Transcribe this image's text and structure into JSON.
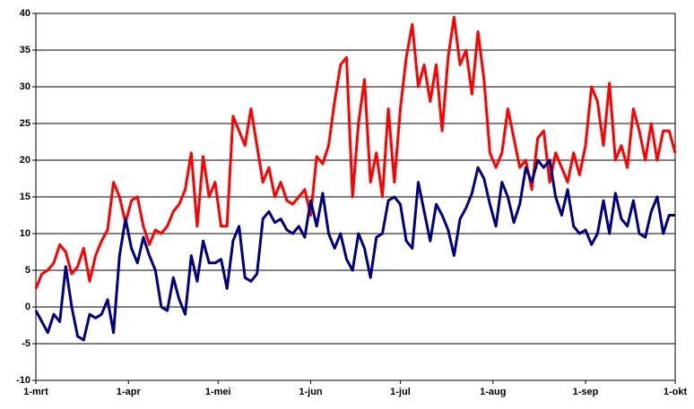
{
  "chart_data": {
    "type": "line",
    "x": [
      0,
      2,
      4,
      6,
      8,
      10,
      12,
      14,
      16,
      18,
      20,
      22,
      24,
      26,
      28,
      30,
      32,
      34,
      36,
      38,
      40,
      42,
      44,
      46,
      48,
      50,
      52,
      54,
      56,
      58,
      60,
      62,
      64,
      66,
      68,
      70,
      72,
      74,
      76,
      78,
      80,
      82,
      84,
      86,
      88,
      90,
      92,
      94,
      96,
      98,
      100,
      102,
      104,
      106,
      108,
      110,
      112,
      114,
      116,
      118,
      120,
      122,
      124,
      126,
      128,
      130,
      132,
      134,
      136,
      138,
      140,
      142,
      144,
      146,
      148,
      150,
      152,
      154,
      156,
      158,
      160,
      162,
      164,
      166,
      168,
      170,
      172,
      174,
      176,
      178,
      180,
      182,
      184,
      186,
      188,
      190,
      192,
      194,
      196,
      198,
      200,
      202,
      204,
      206,
      208,
      210,
      212,
      214
    ],
    "series": [
      {
        "color": "#ff0000",
        "values": [
          2.5,
          4.5,
          5,
          6,
          8.5,
          7.5,
          4.5,
          5.5,
          8,
          3.5,
          7,
          9,
          10.5,
          17,
          15,
          11.5,
          14.5,
          15,
          11,
          8.5,
          10.5,
          10,
          11,
          13,
          14,
          16,
          21,
          11,
          20.5,
          15,
          17,
          11,
          11,
          26,
          24,
          22,
          27,
          22,
          17,
          19,
          15,
          17,
          14.5,
          14,
          15,
          16,
          12.5,
          20.5,
          19.5,
          22,
          28,
          33,
          34,
          15,
          25,
          31,
          17,
          21,
          15,
          27,
          17,
          27,
          34,
          38.5,
          30,
          33,
          28,
          33,
          24,
          34,
          39.5,
          33,
          35,
          29,
          37.5,
          31,
          21,
          19,
          21,
          27,
          23,
          19,
          20,
          16,
          23,
          24,
          17,
          21,
          19,
          17,
          21,
          18,
          22,
          30,
          28,
          22,
          30.5,
          20,
          22,
          19,
          27,
          24,
          20,
          25,
          20,
          24,
          24,
          21
        ]
      },
      {
        "color": "#000080",
        "values": [
          -0.5,
          -2,
          -3.5,
          -1,
          -2,
          5.5,
          0,
          -4,
          -4.5,
          -1,
          -1.5,
          -1,
          1,
          -3.5,
          7,
          12,
          8,
          6,
          9.5,
          7,
          5,
          0,
          -0.5,
          4,
          1,
          -1,
          7,
          3.5,
          9,
          6,
          6,
          6.5,
          2.5,
          9,
          11,
          4,
          3.5,
          4.5,
          12,
          13,
          11.5,
          12,
          10.5,
          10,
          11,
          9.5,
          14.5,
          11,
          15.5,
          10,
          8,
          10,
          6.5,
          5,
          10,
          8,
          4,
          9.5,
          10,
          14.5,
          15,
          14,
          9,
          8,
          17,
          13,
          9,
          14,
          12.5,
          10.5,
          7,
          12,
          13.5,
          15.5,
          19,
          17.5,
          14,
          11,
          17,
          15,
          11.5,
          14,
          19,
          17,
          20,
          19,
          20,
          15,
          12.5,
          16,
          11,
          10,
          10.5,
          8.5,
          10,
          14.5,
          10,
          15.5,
          12,
          11,
          14.5,
          10,
          9.5,
          13,
          15,
          10,
          12.5,
          12.5
        ]
      }
    ],
    "xlim": [
      0,
      214
    ],
    "xticks": [
      {
        "value": 0,
        "label": "1-mrt"
      },
      {
        "value": 31,
        "label": "1-apr"
      },
      {
        "value": 61,
        "label": "1-mei"
      },
      {
        "value": 92,
        "label": "1-jun"
      },
      {
        "value": 122,
        "label": "1-jul"
      },
      {
        "value": 153,
        "label": "1-aug"
      },
      {
        "value": 184,
        "label": "1-sep"
      },
      {
        "value": 214,
        "label": "1-okt"
      }
    ],
    "ylim": [
      -10,
      40
    ],
    "yticks": [
      -10,
      -5,
      0,
      5,
      10,
      15,
      20,
      25,
      30,
      35,
      40
    ],
    "grid": true
  }
}
